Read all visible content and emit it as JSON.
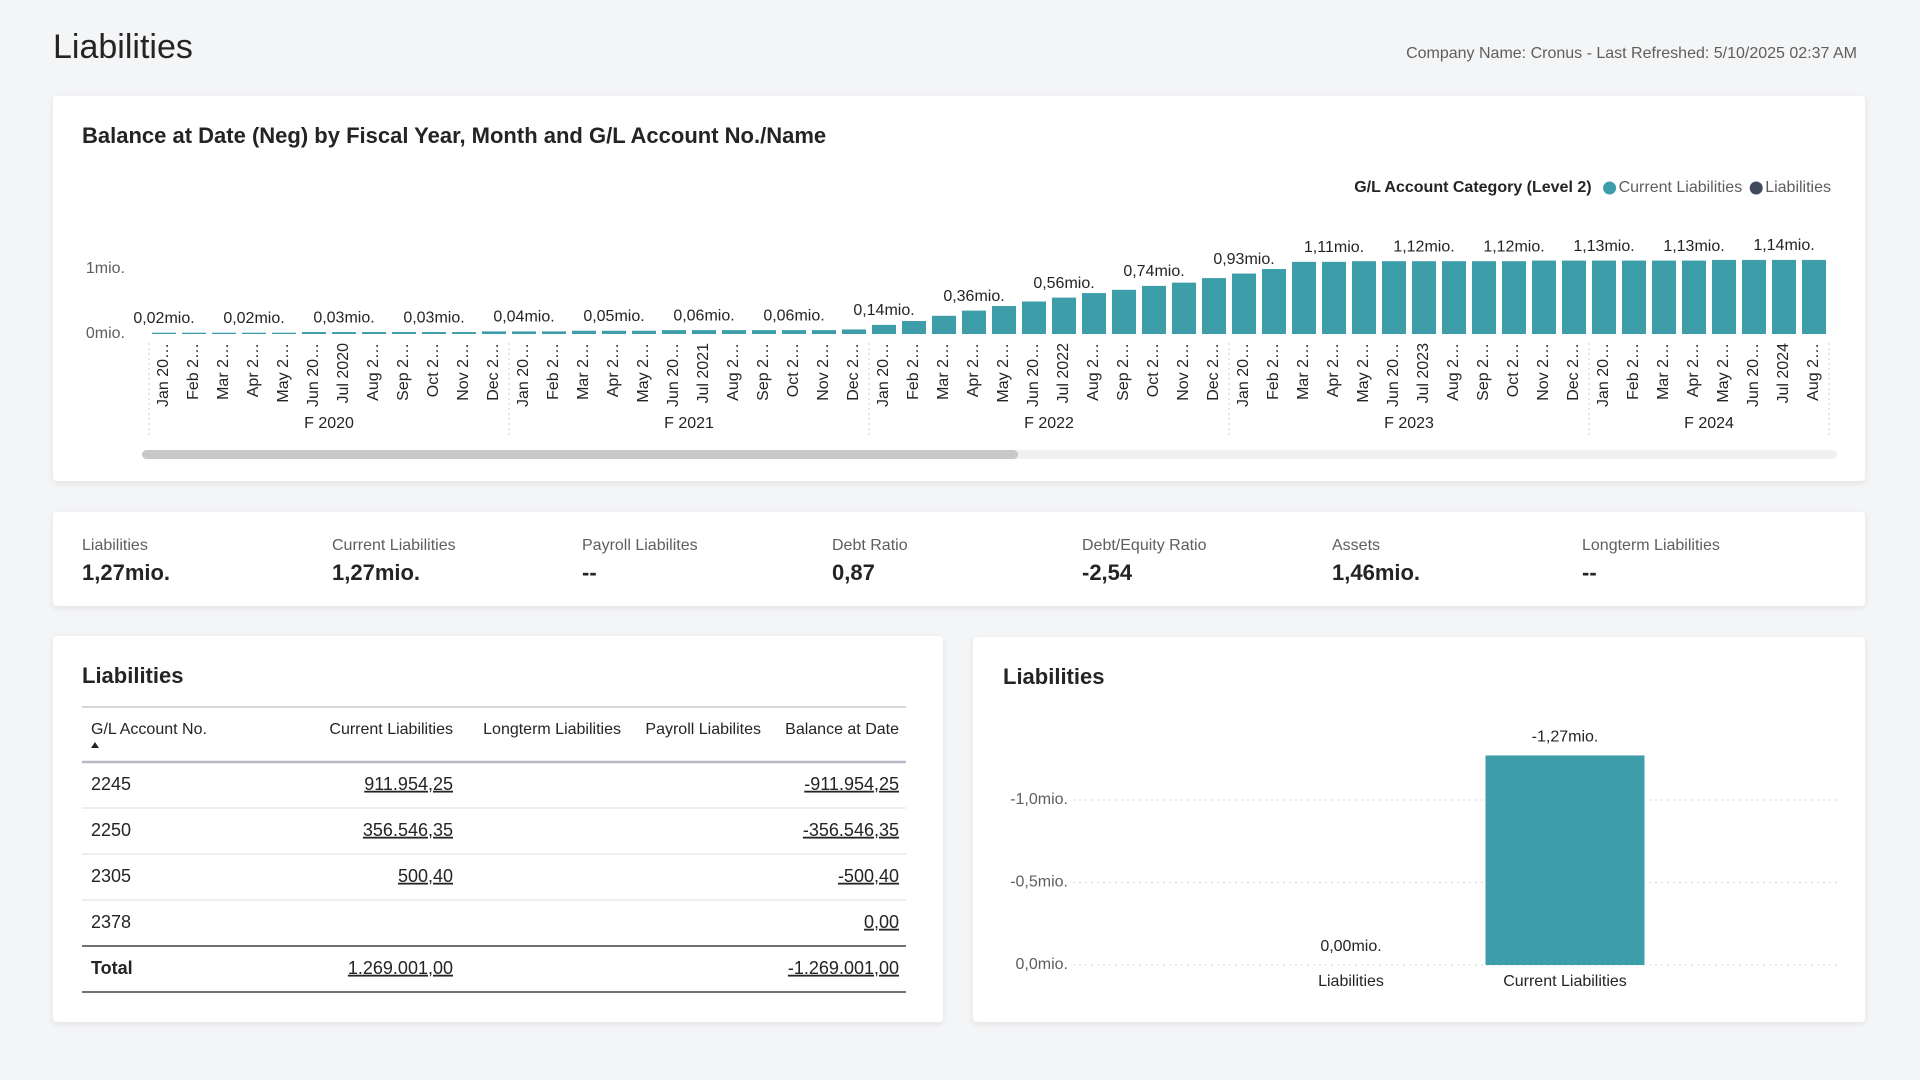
{
  "header": {
    "title": "Liabilities",
    "info": "Company Name: Cronus - Last Refreshed: 5/10/2025 02:37 AM"
  },
  "chart_data": [
    {
      "type": "bar",
      "title": "Balance at Date (Neg) by Fiscal Year, Month and G/L Account No./Name",
      "legend_title": "G/L Account Category (Level 2)",
      "legend": [
        {
          "name": "Current Liabilities",
          "color": "#3d9ea9"
        },
        {
          "name": "Liabilities",
          "color": "#3f4a5b"
        }
      ],
      "legend_position": "top-right",
      "grid": false,
      "color": "#3d9ea9",
      "ylim": [
        0,
        1.5
      ],
      "yticks": [
        {
          "value": 0,
          "label": "0mio."
        },
        {
          "value": 1,
          "label": "1mio."
        }
      ],
      "groups": [
        {
          "name": "F 2020",
          "categories": [
            "Jan 20…",
            "Feb 2…",
            "Mar 2…",
            "Apr 2…",
            "May 2…",
            "Jun 20…",
            "Jul 2020",
            "Aug 2…",
            "Sep 2…",
            "Oct 2…",
            "Nov 2…",
            "Dec 2…"
          ],
          "values": [
            0.02,
            0.02,
            0.02,
            0.02,
            0.02,
            0.03,
            0.03,
            0.03,
            0.03,
            0.03,
            0.03,
            0.04
          ],
          "value_labels": [
            "0,02mio.",
            null,
            null,
            "0,02mio.",
            null,
            null,
            "0,03mio.",
            null,
            null,
            "0,03mio.",
            null,
            null
          ]
        },
        {
          "name": "F 2021",
          "categories": [
            "Jan 20…",
            "Feb 2…",
            "Mar 2…",
            "Apr 2…",
            "May 2…",
            "Jun 20…",
            "Jul 2021",
            "Aug 2…",
            "Sep 2…",
            "Oct 2…",
            "Nov 2…",
            "Dec 2…"
          ],
          "values": [
            0.04,
            0.04,
            0.05,
            0.05,
            0.05,
            0.06,
            0.06,
            0.06,
            0.06,
            0.06,
            0.06,
            0.07
          ],
          "value_labels": [
            "0,04mio.",
            null,
            null,
            "0,05mio.",
            null,
            null,
            "0,06mio.",
            null,
            null,
            "0,06mio.",
            null,
            null
          ]
        },
        {
          "name": "F 2022",
          "categories": [
            "Jan 20…",
            "Feb 2…",
            "Mar 2…",
            "Apr 2…",
            "May 2…",
            "Jun 20…",
            "Jul 2022",
            "Aug 2…",
            "Sep 2…",
            "Oct 2…",
            "Nov 2…",
            "Dec 2…"
          ],
          "values": [
            0.14,
            0.2,
            0.28,
            0.36,
            0.43,
            0.5,
            0.56,
            0.63,
            0.68,
            0.74,
            0.79,
            0.86
          ],
          "value_labels": [
            "0,14mio.",
            null,
            null,
            "0,36mio.",
            null,
            null,
            "0,56mio.",
            null,
            null,
            "0,74mio.",
            null,
            null
          ]
        },
        {
          "name": "F 2023",
          "categories": [
            "Jan 20…",
            "Feb 2…",
            "Mar 2…",
            "Apr 2…",
            "May 2…",
            "Jun 20…",
            "Jul 2023",
            "Aug 2…",
            "Sep 2…",
            "Oct 2…",
            "Nov 2…",
            "Dec 2…"
          ],
          "values": [
            0.93,
            1.0,
            1.11,
            1.11,
            1.12,
            1.12,
            1.12,
            1.12,
            1.12,
            1.12,
            1.13,
            1.13
          ],
          "value_labels": [
            "0,93mio.",
            null,
            null,
            "1,11mio.",
            null,
            null,
            "1,12mio.",
            null,
            null,
            "1,12mio.",
            null,
            null
          ]
        },
        {
          "name": "F 2024",
          "categories": [
            "Jan 20…",
            "Feb 2…",
            "Mar 2…",
            "Apr 2…",
            "May 2…",
            "Jun 20…",
            "Jul 2024",
            "Aug 2…"
          ],
          "values": [
            1.13,
            1.13,
            1.13,
            1.13,
            1.14,
            1.14,
            1.14,
            1.14
          ],
          "value_labels": [
            "1,13mio.",
            null,
            null,
            "1,13mio.",
            null,
            null,
            "1,14mio.",
            null
          ]
        }
      ]
    },
    {
      "type": "bar",
      "title": "Liabilities",
      "categories": [
        "Liabilities",
        "Current Liabilities"
      ],
      "values": [
        0,
        -1.27
      ],
      "value_labels": [
        "0,00mio.",
        "-1,27mio."
      ],
      "color": "#3d9ea9",
      "grid": true,
      "ylim": [
        0,
        -1.5
      ],
      "yticks": [
        {
          "value": 0,
          "label": "0,0mio."
        },
        {
          "value": -0.5,
          "label": "-0,5mio."
        },
        {
          "value": -1,
          "label": "-1,0mio."
        }
      ]
    }
  ],
  "kpis": [
    {
      "label": "Liabilities",
      "value": "1,27mio."
    },
    {
      "label": "Current Liabilities",
      "value": "1,27mio."
    },
    {
      "label": "Payroll Liabilites",
      "value": "--"
    },
    {
      "label": "Debt Ratio",
      "value": "0,87"
    },
    {
      "label": "Debt/Equity Ratio",
      "value": "-2,54"
    },
    {
      "label": "Assets",
      "value": "1,46mio."
    },
    {
      "label": "Longterm Liabilities",
      "value": "--"
    }
  ],
  "table": {
    "title": "Liabilities",
    "columns": [
      "G/L Account No.",
      "Current Liabilities",
      "Longterm Liabilities",
      "Payroll Liabilites",
      "Balance at Date"
    ],
    "rows": [
      [
        "2245",
        "911.954,25",
        null,
        null,
        "-911.954,25"
      ],
      [
        "2250",
        "356.546,35",
        null,
        null,
        "-356.546,35"
      ],
      [
        "2305",
        "500,40",
        null,
        null,
        "-500,40"
      ],
      [
        "2378",
        null,
        null,
        null,
        "0,00"
      ]
    ],
    "total": [
      "Total",
      "1.269.001,00",
      null,
      null,
      "-1.269.001,00"
    ]
  }
}
